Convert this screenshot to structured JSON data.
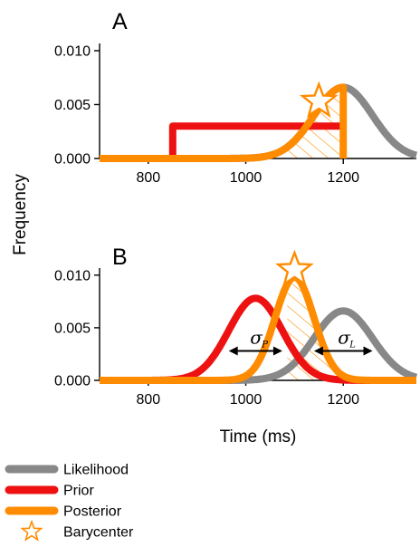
{
  "chart_data": [
    {
      "panel": "A",
      "type": "line",
      "ylabel": "Frequency",
      "xlabel": "",
      "xlim": [
        700,
        1350
      ],
      "ylim": [
        0,
        0.0105
      ],
      "xticks": [
        800,
        1000,
        1200
      ],
      "yticks": [
        0.0,
        0.005,
        0.01
      ],
      "ytick_labels": [
        "0.000",
        "0.005",
        "0.010"
      ],
      "series": [
        {
          "name": "Likelihood",
          "color": "#888888",
          "kind": "gaussian",
          "mu": 1200,
          "sigma": 60,
          "peak": 0.0066
        },
        {
          "name": "Prior",
          "color": "#ee1111",
          "kind": "uniform",
          "x_start": 850,
          "x_end": 1200,
          "level": 0.003
        },
        {
          "name": "Posterior",
          "color": "#ff8c00",
          "kind": "half_gaussian",
          "mu": 1200,
          "sigma": 60,
          "peak": 0.0066,
          "cut": 1200
        }
      ],
      "barycenter": {
        "x": 1150,
        "y": 0.0053
      }
    },
    {
      "panel": "B",
      "type": "line",
      "ylabel": "Frequency",
      "xlabel": "Time (ms)",
      "xlim": [
        700,
        1350
      ],
      "ylim": [
        0,
        0.0105
      ],
      "xticks": [
        800,
        1000,
        1200
      ],
      "yticks": [
        0.0,
        0.005,
        0.01
      ],
      "ytick_labels": [
        "0.000",
        "0.005",
        "0.010"
      ],
      "series": [
        {
          "name": "Likelihood",
          "color": "#888888",
          "kind": "gaussian",
          "mu": 1200,
          "sigma": 60,
          "peak": 0.0066
        },
        {
          "name": "Prior",
          "color": "#ee1111",
          "kind": "gaussian",
          "mu": 1020,
          "sigma": 55,
          "peak": 0.0078
        },
        {
          "name": "Posterior",
          "color": "#ff8c00",
          "kind": "gaussian",
          "mu": 1100,
          "sigma": 40,
          "peak": 0.0098
        }
      ],
      "barycenter": {
        "x": 1100,
        "y": 0.0105
      },
      "annotations": [
        {
          "symbol": "σ",
          "subscript": "P",
          "x_from": 965,
          "x_to": 1075,
          "y": 0.0028
        },
        {
          "symbol": "σ",
          "subscript": "L",
          "x_from": 1140,
          "x_to": 1260,
          "y": 0.0028
        }
      ]
    }
  ],
  "legend": [
    {
      "label": "Likelihood",
      "color": "#888888",
      "marker": "line"
    },
    {
      "label": "Prior",
      "color": "#ee1111",
      "marker": "line"
    },
    {
      "label": "Posterior",
      "color": "#ff8c00",
      "marker": "line"
    },
    {
      "label": "Barycenter",
      "color": "#ff8c00",
      "marker": "star"
    }
  ]
}
